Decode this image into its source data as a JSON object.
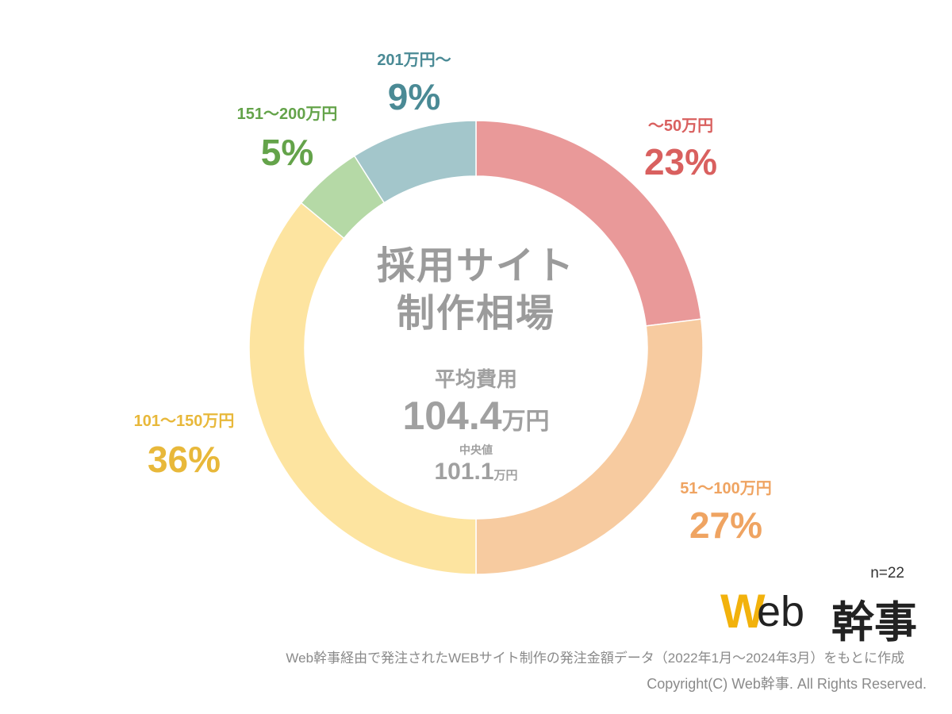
{
  "chart_data": {
    "type": "pie",
    "subtype": "donut",
    "title_line1": "採用サイト",
    "title_line2": "制作相場",
    "slices": [
      {
        "label": "〜50万円",
        "value": 23,
        "value_text": "23%",
        "color": "#e99999",
        "text_color": "#d9605f"
      },
      {
        "label": "51〜100万円",
        "value": 27,
        "value_text": "27%",
        "color": "#f7cba0",
        "text_color": "#efa462"
      },
      {
        "label": "101〜150万円",
        "value": 36,
        "value_text": "36%",
        "color": "#fde4a0",
        "text_color": "#e8b83a"
      },
      {
        "label": "151〜200万円",
        "value": 5,
        "value_text": "5%",
        "color": "#b5d9a6",
        "text_color": "#64a34a"
      },
      {
        "label": "201万円〜",
        "value": 9,
        "value_text": "9%",
        "color": "#a3c6cb",
        "text_color": "#4a8a95"
      }
    ],
    "average_label": "平均費用",
    "average_value": "104.4",
    "average_unit": "万円",
    "median_label": "中央値",
    "median_value": "101.1",
    "median_unit": "万円",
    "sample_size": "n=22"
  },
  "logo": {
    "w": "W",
    "eb": "eb",
    "kanji": "幹事"
  },
  "footnote": "Web幹事経由で発注されたWEBサイト制作の発注金額データ（2022年1月〜2024年3月）をもとに作成",
  "copyright": "Copyright(C) Web幹事. All Rights Reserved."
}
